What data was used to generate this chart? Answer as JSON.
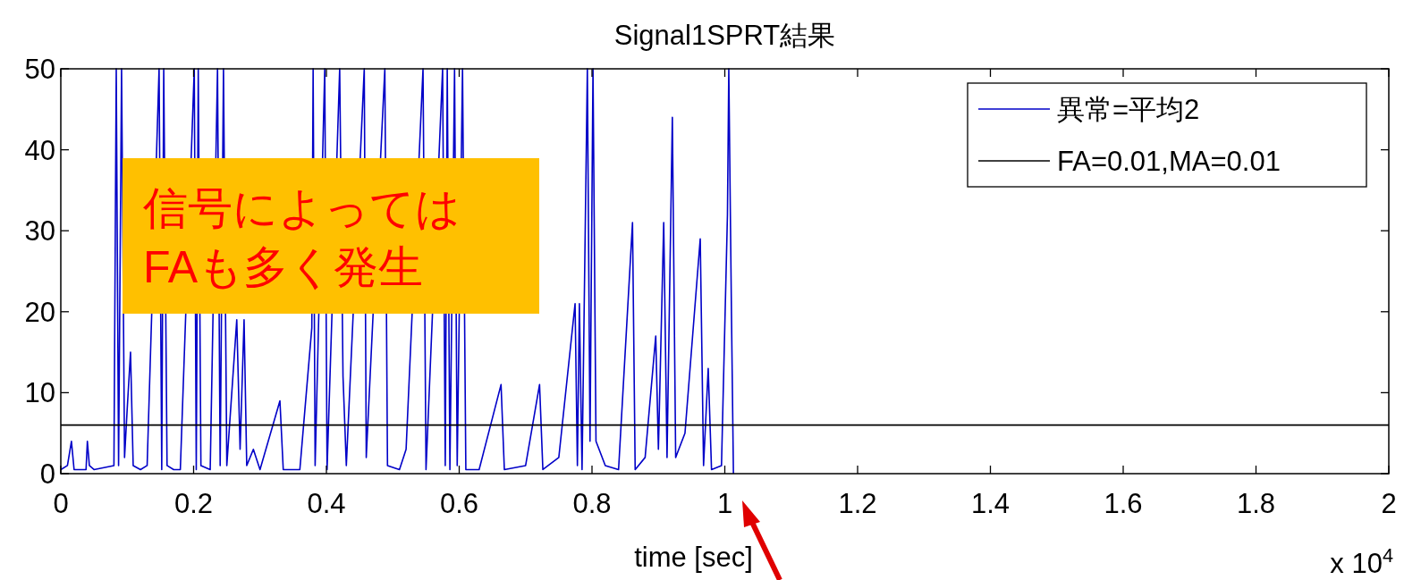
{
  "chart_data": {
    "type": "line",
    "title": "Signal1SPRT結果",
    "xlabel": "time [sec]",
    "annotations": [
      "信号によっては\nFAも多く発生",
      "x 10$^{4}$"
    ],
    "legend": "top right",
    "xlim": [
      0,
      2
    ],
    "ylim": [
      0,
      50
    ],
    "xticks": [
      0,
      0.2,
      0.4,
      0.6,
      0.8,
      1,
      1.2,
      1.4,
      1.6,
      1.8,
      2
    ],
    "yticks": [
      0,
      10,
      20,
      30,
      40,
      50
    ],
    "series": [
      {
        "name": "異常=平均2",
        "color": "#0000c8",
        "x": [
          0,
          0.01,
          0.016,
          0.02,
          0.038,
          0.04,
          0.043,
          0.05,
          0.08,
          0.0835,
          0.087,
          0.0915,
          0.096,
          0.1,
          0.105,
          0.109,
          0.12,
          0.13,
          0.148,
          0.152,
          0.155,
          0.16,
          0.17,
          0.18,
          0.201,
          0.204,
          0.207,
          0.211,
          0.225,
          0.236,
          0.24,
          0.245,
          0.25,
          0.265,
          0.27,
          0.276,
          0.28,
          0.29,
          0.3,
          0.33,
          0.335,
          0.36,
          0.378,
          0.38,
          0.383,
          0.3975,
          0.401,
          0.42,
          0.425,
          0.43,
          0.457,
          0.46,
          0.488,
          0.492,
          0.51,
          0.52,
          0.5455,
          0.55,
          0.575,
          0.579,
          0.582,
          0.586,
          0.593,
          0.597,
          0.605,
          0.61,
          0.63,
          0.663,
          0.668,
          0.7,
          0.721,
          0.726,
          0.75,
          0.7745,
          0.778,
          0.781,
          0.785,
          0.793,
          0.797,
          0.8015,
          0.806,
          0.82,
          0.84,
          0.861,
          0.865,
          0.88,
          0.896,
          0.9,
          0.908,
          0.913,
          0.921,
          0.926,
          0.94,
          0.963,
          0.968,
          0.975,
          0.98,
          0.995,
          1.004,
          1.006,
          1.01,
          1.013
        ],
        "values": [
          0.5,
          1,
          4,
          0.5,
          0.5,
          4,
          1,
          0.5,
          1,
          50,
          1,
          50,
          2,
          8,
          15,
          1,
          0.5,
          1,
          50,
          0.5,
          50,
          1,
          0.5,
          0.5,
          50,
          0.5,
          50,
          1,
          0.5,
          50,
          1,
          50,
          1,
          19,
          3,
          19,
          1,
          3,
          0.5,
          9,
          0.5,
          0.5,
          18,
          50,
          1,
          50,
          0.5,
          50,
          12,
          1,
          50,
          2,
          50,
          1,
          0.5,
          3,
          50,
          0.5,
          50,
          1,
          50,
          0.5,
          50,
          1,
          50,
          0.5,
          0.5,
          11,
          0.5,
          1,
          11,
          0.5,
          2,
          21,
          1,
          21,
          0.5,
          50,
          4,
          50,
          4,
          1,
          0.5,
          31,
          0.5,
          2,
          17,
          3,
          31,
          2,
          44,
          2,
          5,
          29,
          1,
          13,
          0.5,
          1,
          32,
          50,
          20,
          0
        ]
      },
      {
        "name": "FA=0.01,MA=0.01",
        "color": "#000000",
        "x": [
          0,
          2
        ],
        "values": [
          6,
          6
        ]
      }
    ]
  }
}
